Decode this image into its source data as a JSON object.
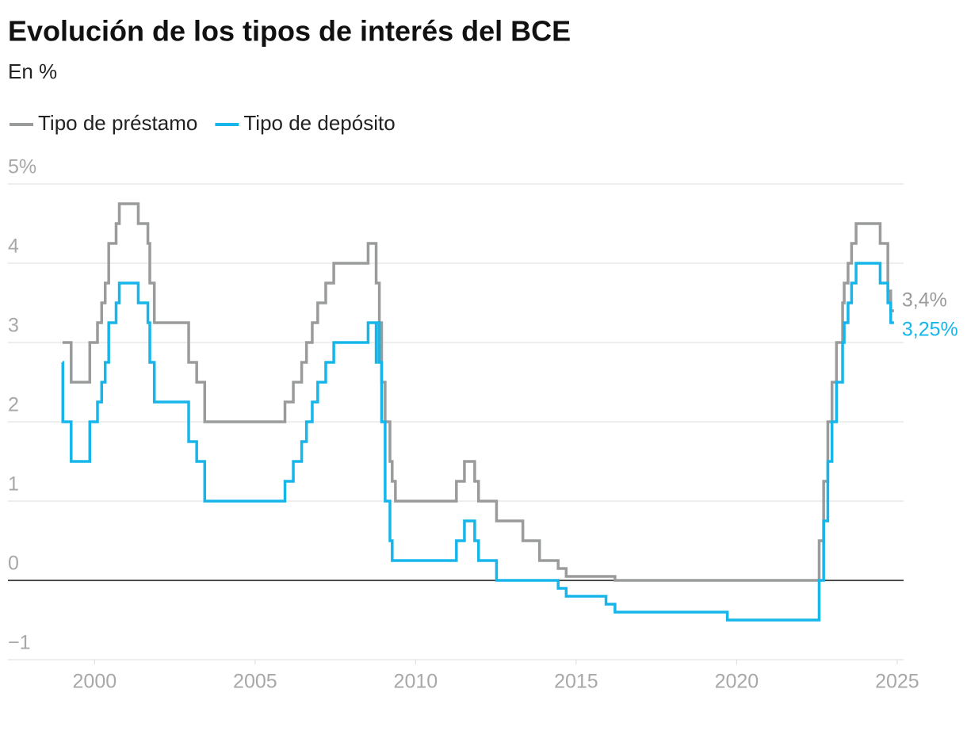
{
  "chart_data": {
    "type": "line",
    "step": true,
    "title": "Evolución de los tipos de interés del BCE",
    "subtitle": "En %",
    "xlim": [
      1997.3,
      2025.2
    ],
    "xticks": [
      2000,
      2005,
      2010,
      2015,
      2020,
      2025
    ],
    "ylim": [
      -1,
      5
    ],
    "yticks": [
      {
        "value": 5,
        "label": "5%"
      },
      4,
      3,
      2,
      1,
      0,
      {
        "value": -1,
        "label": "−1"
      }
    ],
    "grid": true,
    "series": [
      {
        "name": "Tipo de préstamo",
        "color": "#9a9c9c",
        "end_label": "3,4%",
        "x": [
          1999.0,
          1999.27,
          1999.85,
          2000.09,
          2000.22,
          2000.33,
          2000.44,
          2000.67,
          2000.77,
          2001.36,
          2001.66,
          2001.72,
          2001.86,
          2002.93,
          2003.18,
          2003.43,
          2005.93,
          2006.19,
          2006.45,
          2006.6,
          2006.78,
          2006.95,
          2007.2,
          2007.45,
          2008.52,
          2008.77,
          2008.87,
          2008.94,
          2009.05,
          2009.2,
          2009.27,
          2009.37,
          2011.27,
          2011.52,
          2011.84,
          2011.96,
          2012.52,
          2013.34,
          2013.86,
          2014.44,
          2014.69,
          2016.21,
          2022.57,
          2022.71,
          2022.84,
          2022.97,
          2023.11,
          2023.3,
          2023.35,
          2023.47,
          2023.58,
          2023.72,
          2024.47,
          2024.71,
          2024.8,
          2024.9
        ],
        "values": [
          3.0,
          2.5,
          3.0,
          3.25,
          3.5,
          3.75,
          4.25,
          4.5,
          4.75,
          4.5,
          4.25,
          3.75,
          3.25,
          2.75,
          2.5,
          2.0,
          2.25,
          2.5,
          2.75,
          3.0,
          3.25,
          3.5,
          3.75,
          4.0,
          4.25,
          3.75,
          3.25,
          2.5,
          2.0,
          1.5,
          1.25,
          1.0,
          1.25,
          1.5,
          1.25,
          1.0,
          0.75,
          0.5,
          0.25,
          0.15,
          0.05,
          0.0,
          0.5,
          1.25,
          2.0,
          2.5,
          3.0,
          3.5,
          3.75,
          4.0,
          4.25,
          4.5,
          4.25,
          3.65,
          3.4,
          3.4
        ]
      },
      {
        "name": "Tipo de depósito",
        "color": "#17b6ea",
        "end_label": "3,25%",
        "x": [
          1999.0,
          1999.01,
          1999.27,
          1999.85,
          2000.09,
          2000.22,
          2000.33,
          2000.44,
          2000.67,
          2000.77,
          2001.36,
          2001.66,
          2001.72,
          2001.86,
          2002.93,
          2003.18,
          2003.43,
          2005.93,
          2006.19,
          2006.45,
          2006.6,
          2006.78,
          2006.95,
          2007.2,
          2007.45,
          2008.52,
          2008.77,
          2008.78,
          2008.87,
          2008.94,
          2009.05,
          2009.2,
          2009.27,
          2011.27,
          2011.52,
          2011.84,
          2011.96,
          2012.52,
          2014.44,
          2014.69,
          2015.93,
          2016.21,
          2019.71,
          2022.57,
          2022.71,
          2022.84,
          2022.97,
          2023.11,
          2023.3,
          2023.35,
          2023.47,
          2023.58,
          2023.72,
          2024.47,
          2024.71,
          2024.8,
          2024.9
        ],
        "values": [
          2.75,
          2.0,
          1.5,
          2.0,
          2.25,
          2.5,
          2.75,
          3.25,
          3.5,
          3.75,
          3.5,
          3.25,
          2.75,
          2.25,
          1.75,
          1.5,
          1.0,
          1.25,
          1.5,
          1.75,
          2.0,
          2.25,
          2.5,
          2.75,
          3.0,
          3.25,
          2.75,
          3.25,
          2.75,
          2.0,
          1.0,
          0.5,
          0.25,
          0.5,
          0.75,
          0.5,
          0.25,
          0.0,
          -0.1,
          -0.2,
          -0.3,
          -0.4,
          -0.5,
          0.0,
          0.75,
          1.5,
          2.0,
          2.5,
          3.0,
          3.25,
          3.5,
          3.75,
          4.0,
          3.75,
          3.5,
          3.25,
          3.25
        ]
      }
    ]
  }
}
